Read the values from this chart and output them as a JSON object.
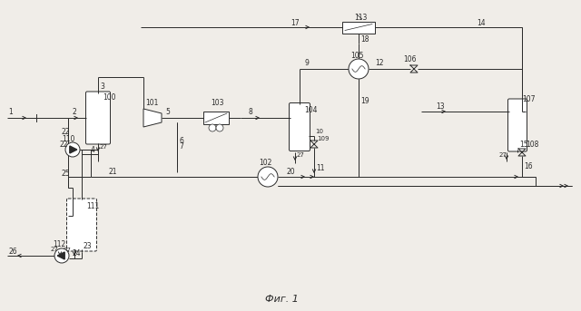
{
  "bg_color": "#f0ede8",
  "line_color": "#2a2a2a",
  "title": "Фиг. 1",
  "title_fontsize": 8,
  "figsize": [
    6.4,
    3.43
  ],
  "dpi": 100,
  "lw": 0.7
}
